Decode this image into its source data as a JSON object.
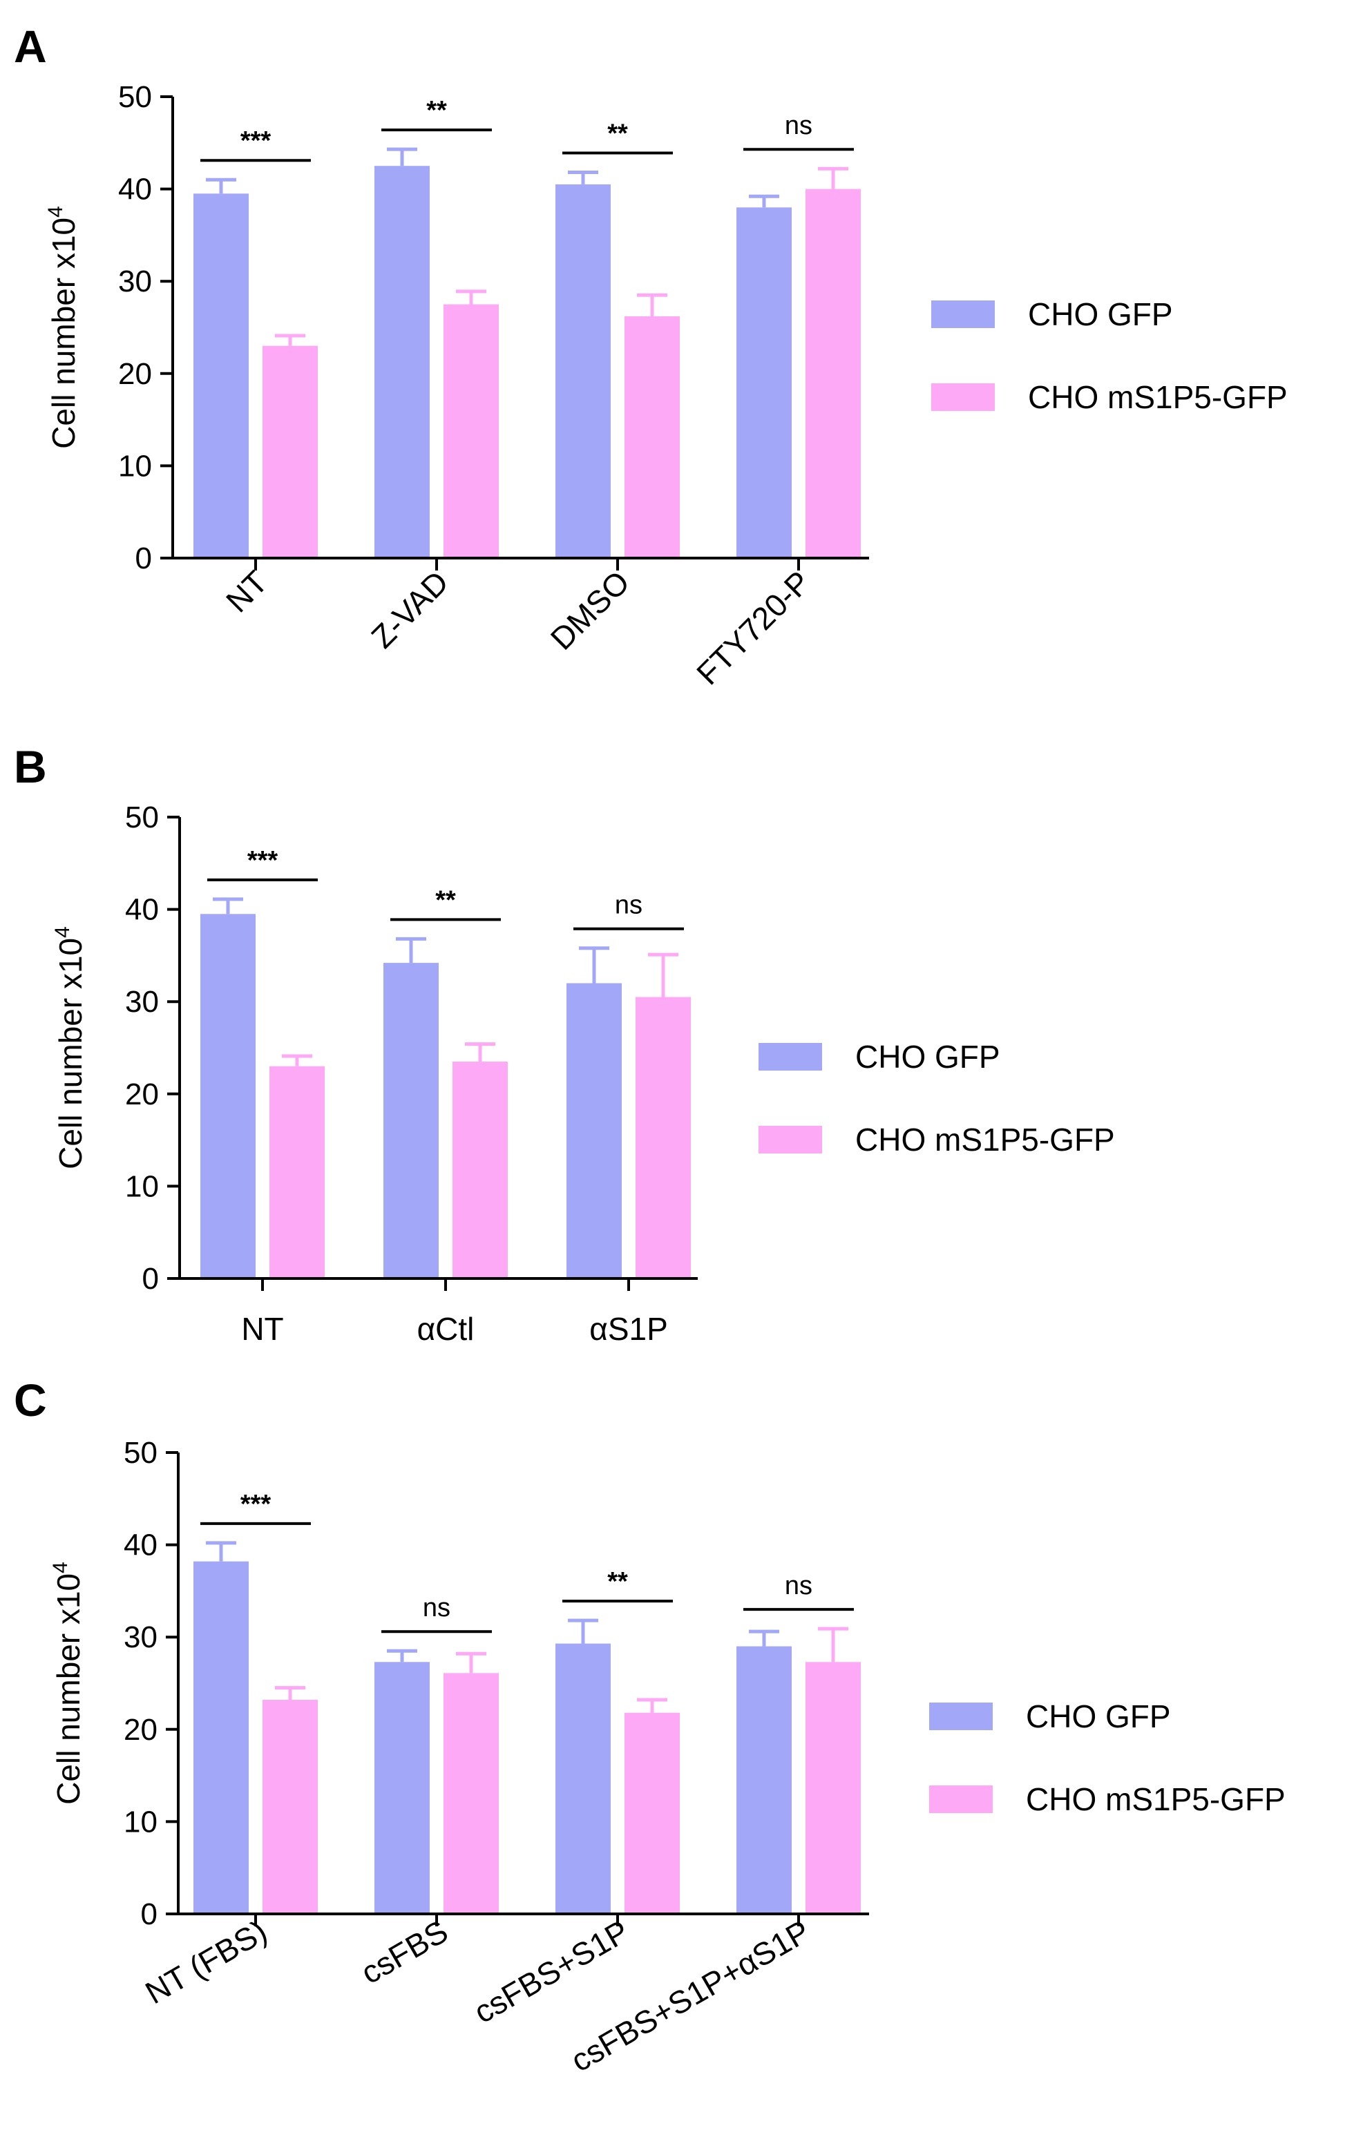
{
  "colors": {
    "gfp": "#a3a7f8",
    "s1p5": "#fda9f5",
    "axis": "#000000"
  },
  "legend_entries": [
    "CHO GFP",
    "CHO mS1P5-GFP"
  ],
  "chart_data": [
    {
      "panel": "A",
      "type": "bar",
      "ylabel": "Cell number x10",
      "ylabel_sup": "4",
      "ylim": [
        0,
        50
      ],
      "yticks": [
        "0",
        "10",
        "20",
        "30",
        "40",
        "50"
      ],
      "categories": [
        "NT",
        "Z-VAD",
        "DMSO",
        "FTY720-P"
      ],
      "category_rotation": -45,
      "series": [
        {
          "name": "CHO GFP",
          "values": [
            39.5,
            42.5,
            40.5,
            38
          ],
          "errors": [
            1.5,
            1.8,
            1.3,
            1.2
          ]
        },
        {
          "name": "CHO mS1P5-GFP",
          "values": [
            23,
            27.5,
            26.2,
            40
          ],
          "errors": [
            1.1,
            1.4,
            2.3,
            2.2
          ]
        }
      ],
      "significance": [
        "***",
        "**",
        "**",
        "ns"
      ],
      "legend": "right"
    },
    {
      "panel": "B",
      "type": "bar",
      "ylabel": "Cell number x10",
      "ylabel_sup": "4",
      "ylim": [
        0,
        50
      ],
      "yticks": [
        "0",
        "10",
        "20",
        "30",
        "40",
        "50"
      ],
      "categories": [
        "NT",
        "αCtl",
        "αS1P"
      ],
      "category_rotation": 0,
      "series": [
        {
          "name": "CHO GFP",
          "values": [
            39.5,
            34.2,
            32
          ],
          "errors": [
            1.6,
            2.6,
            3.8
          ]
        },
        {
          "name": "CHO mS1P5-GFP",
          "values": [
            23,
            23.5,
            30.5
          ],
          "errors": [
            1.1,
            1.9,
            4.6
          ]
        }
      ],
      "significance": [
        "***",
        "**",
        "ns"
      ],
      "legend": "right"
    },
    {
      "panel": "C",
      "type": "bar",
      "ylabel": "Cell number x10",
      "ylabel_sup": "4",
      "ylim": [
        0,
        50
      ],
      "yticks": [
        "0",
        "10",
        "20",
        "30",
        "40",
        "50"
      ],
      "categories": [
        "NT (FBS)",
        "csFBS",
        "csFBS+S1P",
        "csFBS+S1P+αS1P"
      ],
      "category_rotation": -30,
      "series": [
        {
          "name": "CHO GFP",
          "values": [
            38.2,
            27.3,
            29.3,
            29
          ],
          "errors": [
            2.0,
            1.2,
            2.5,
            1.6
          ]
        },
        {
          "name": "CHO mS1P5-GFP",
          "values": [
            23.2,
            26.1,
            21.8,
            27.3
          ],
          "errors": [
            1.3,
            2.1,
            1.4,
            3.6
          ]
        }
      ],
      "significance": [
        "***",
        "ns",
        "**",
        "ns"
      ],
      "legend": "right"
    }
  ]
}
